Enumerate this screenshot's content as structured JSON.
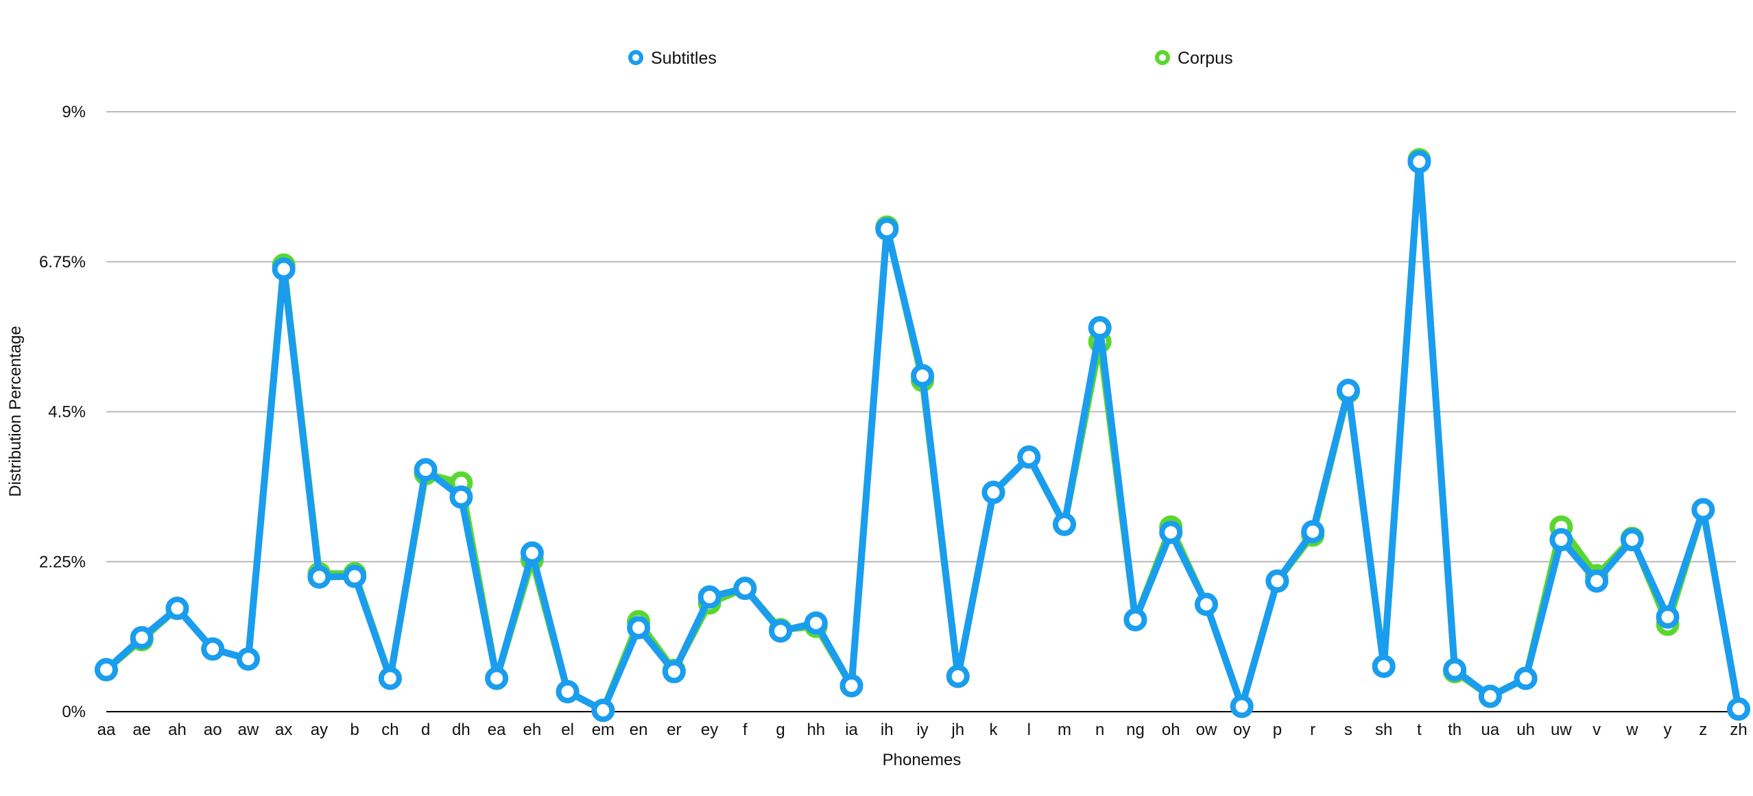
{
  "chart_data": {
    "type": "line",
    "title": "",
    "xlabel": "Phonemes",
    "ylabel": "Distribution Percentage",
    "ylim": [
      0,
      9
    ],
    "yticks": [
      {
        "value": 0,
        "label": "0%"
      },
      {
        "value": 2.25,
        "label": "2.25%"
      },
      {
        "value": 4.5,
        "label": "4.5%"
      },
      {
        "value": 6.75,
        "label": "6.75%"
      },
      {
        "value": 9,
        "label": "9%"
      }
    ],
    "grid": true,
    "legend_position": "top-center",
    "categories": [
      "aa",
      "ae",
      "ah",
      "ao",
      "aw",
      "ax",
      "ay",
      "b",
      "ch",
      "d",
      "dh",
      "ea",
      "eh",
      "el",
      "em",
      "en",
      "er",
      "ey",
      "f",
      "g",
      "hh",
      "ia",
      "ih",
      "iy",
      "jh",
      "k",
      "l",
      "m",
      "n",
      "ng",
      "oh",
      "ow",
      "oy",
      "p",
      "r",
      "s",
      "sh",
      "t",
      "th",
      "ua",
      "uh",
      "uw",
      "v",
      "w",
      "y",
      "z",
      "zh"
    ],
    "series": [
      {
        "name": "Corpus",
        "color": "#5ad72f",
        "values": [
          0.63,
          1.08,
          1.55,
          0.94,
          0.79,
          6.7,
          2.07,
          2.07,
          0.5,
          3.57,
          3.43,
          0.5,
          2.28,
          0.3,
          0.02,
          1.35,
          0.62,
          1.63,
          1.85,
          1.23,
          1.28,
          0.39,
          7.27,
          4.97,
          0.53,
          3.29,
          3.82,
          2.81,
          5.55,
          1.38,
          2.77,
          1.61,
          0.08,
          1.96,
          2.65,
          4.8,
          0.68,
          8.28,
          0.6,
          0.23,
          0.5,
          2.77,
          2.04,
          2.6,
          1.31,
          3.03,
          0.04
        ]
      },
      {
        "name": "Subtitles",
        "color": "#1a9def",
        "values": [
          0.63,
          1.11,
          1.55,
          0.94,
          0.79,
          6.64,
          2.02,
          2.03,
          0.5,
          3.63,
          3.22,
          0.5,
          2.38,
          0.3,
          0.02,
          1.26,
          0.6,
          1.72,
          1.85,
          1.21,
          1.33,
          0.39,
          7.24,
          5.04,
          0.53,
          3.29,
          3.82,
          2.81,
          5.76,
          1.38,
          2.69,
          1.61,
          0.08,
          1.96,
          2.7,
          4.82,
          0.68,
          8.25,
          0.63,
          0.23,
          0.5,
          2.58,
          1.96,
          2.58,
          1.42,
          3.03,
          0.04
        ]
      }
    ]
  }
}
